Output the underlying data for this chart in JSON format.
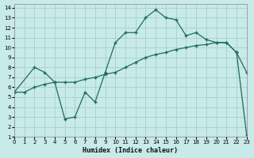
{
  "xlabel": "Humidex (Indice chaleur)",
  "background_color": "#c8eae8",
  "grid_color": "#a8d4d0",
  "line_color": "#1d6b62",
  "xlim": [
    0,
    23
  ],
  "ylim": [
    1,
    14.4
  ],
  "xticks": [
    0,
    1,
    2,
    3,
    4,
    5,
    6,
    7,
    8,
    9,
    10,
    11,
    12,
    13,
    14,
    15,
    16,
    17,
    18,
    19,
    20,
    21,
    22,
    23
  ],
  "yticks": [
    1,
    2,
    3,
    4,
    5,
    6,
    7,
    8,
    9,
    10,
    11,
    12,
    13,
    14
  ],
  "line1_x": [
    0,
    2,
    3,
    4,
    5,
    6,
    7,
    8,
    9,
    10,
    11,
    12,
    13,
    14,
    15,
    16,
    17,
    18,
    19,
    20,
    21,
    22,
    23
  ],
  "line1_y": [
    5.5,
    8.0,
    7.5,
    6.5,
    2.8,
    3.0,
    5.5,
    4.5,
    7.5,
    10.5,
    11.5,
    11.5,
    13.0,
    13.8,
    13.0,
    12.8,
    11.2,
    11.5,
    10.8,
    10.5,
    10.5,
    9.5,
    1.2
  ],
  "line2_x": [
    0,
    1,
    2,
    3,
    4,
    5,
    6,
    7,
    8,
    9,
    10,
    11,
    12,
    13,
    14,
    15,
    16,
    17,
    18,
    19,
    20,
    21,
    22,
    23
  ],
  "line2_y": [
    5.5,
    5.5,
    6.0,
    6.3,
    6.5,
    6.5,
    6.5,
    6.8,
    7.0,
    7.3,
    7.5,
    8.0,
    8.5,
    9.0,
    9.3,
    9.5,
    9.8,
    10.0,
    10.2,
    10.3,
    10.5,
    10.5,
    9.5,
    7.5
  ]
}
